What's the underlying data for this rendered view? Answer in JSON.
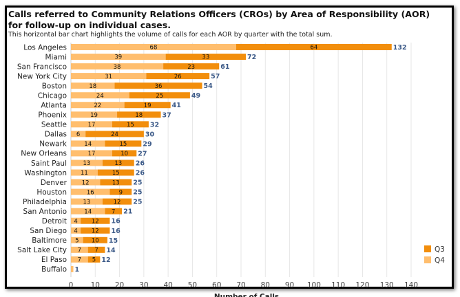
{
  "chart_data": {
    "type": "bar",
    "orientation": "horizontal",
    "stacked": true,
    "title": "Calls referred to Community Relations Officers (CROs) by Area of Responsibility (AOR) for follow-up on individual cases.",
    "subtitle": "This horizontal bar chart highlights the volume of calls for each AOR by quarter with the total sum.",
    "xlabel": "Number of Calls",
    "ylabel": "",
    "xlim": [
      0,
      140
    ],
    "x_ticks": [
      0,
      10,
      20,
      30,
      40,
      50,
      60,
      70,
      80,
      90,
      100,
      110,
      120,
      130,
      140
    ],
    "grid": true,
    "legend_position": "bottom-right",
    "categories": [
      "Los Angeles",
      "Miami",
      "San Francisco",
      "New York City",
      "Boston",
      "Chicago",
      "Atlanta",
      "Phoenix",
      "Seattle",
      "Dallas",
      "Newark",
      "New Orleans",
      "Saint Paul",
      "Washington",
      "Denver",
      "Houston",
      "Philadelphia",
      "San Antonio",
      "Detroit",
      "San Diego",
      "Baltimore",
      "Salt Lake City",
      "El Paso",
      "Buffalo"
    ],
    "series": [
      {
        "name": "Q4",
        "color": "#ffbe6e",
        "values": [
          68,
          39,
          38,
          31,
          18,
          24,
          22,
          19,
          17,
          6,
          14,
          17,
          13,
          11,
          12,
          16,
          13,
          14,
          4,
          4,
          5,
          7,
          7,
          1
        ]
      },
      {
        "name": "Q3",
        "color": "#f28e0c",
        "values": [
          64,
          33,
          23,
          26,
          36,
          25,
          19,
          18,
          15,
          24,
          15,
          10,
          13,
          15,
          13,
          9,
          12,
          7,
          12,
          12,
          10,
          7,
          5,
          0
        ]
      }
    ],
    "totals": [
      132,
      72,
      61,
      57,
      54,
      49,
      41,
      37,
      32,
      30,
      29,
      27,
      26,
      26,
      25,
      25,
      25,
      21,
      16,
      16,
      15,
      14,
      12,
      1
    ],
    "legend_order": [
      "Q3",
      "Q4"
    ]
  }
}
